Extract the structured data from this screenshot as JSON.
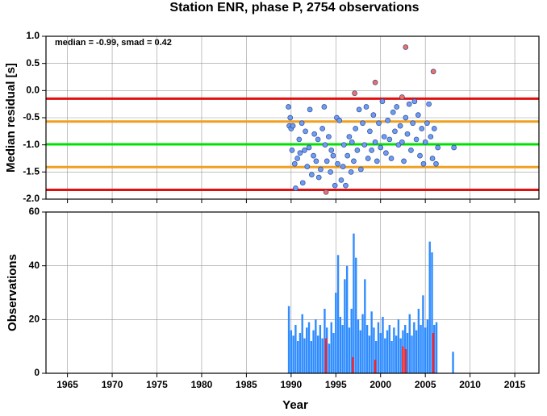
{
  "chart_data": [
    {
      "type": "scatter",
      "title": "Station ENR, phase P, 2754 observations",
      "y_label": "Median residual [s]",
      "annotation": "median = -0.99, smad = 0.42",
      "xlim": [
        1962.6,
        2017.7
      ],
      "xticks": [
        1965,
        1970,
        1975,
        1980,
        1985,
        1990,
        1995,
        2000,
        2005,
        2010,
        2015
      ],
      "ylim": [
        -2,
        1
      ],
      "yticks": [
        {
          "value": 1,
          "label": "1.0"
        },
        0.5,
        {
          "value": 0,
          "label": "0.0"
        },
        -0.5,
        {
          "value": -1,
          "label": "-1.0"
        },
        -1.5,
        {
          "value": -2,
          "label": "-2.0"
        }
      ],
      "grid": true,
      "hlines": [
        {
          "value": -0.99,
          "color": "#00e000"
        },
        {
          "value": -0.57,
          "color": "#f0a020"
        },
        {
          "value": -1.41,
          "color": "#f0a020"
        },
        {
          "value": -0.15,
          "color": "#e01010"
        },
        {
          "value": -1.83,
          "color": "#e01010"
        }
      ],
      "series": [
        {
          "color": "#6f9cf0",
          "x": [
            1989.7,
            1989.8,
            1989.9,
            1990.0,
            1990.1,
            1990.2,
            1990.4,
            1990.5,
            1990.7,
            1990.9,
            1991.0,
            1991.2,
            1991.3,
            1991.5,
            1991.6,
            1991.8,
            1992.0,
            1992.1,
            1992.3,
            1992.5,
            1992.6,
            1992.8,
            1993.0,
            1993.1,
            1993.3,
            1993.5,
            1993.7,
            1993.8,
            1994.0,
            1994.2,
            1994.4,
            1994.5,
            1994.7,
            1994.9,
            1995.1,
            1995.2,
            1995.4,
            1995.6,
            1995.8,
            1995.9,
            1996.1,
            1996.3,
            1996.5,
            1996.7,
            1996.8,
            1997.0,
            1997.2,
            1997.4,
            1997.6,
            1997.8,
            1998.0,
            1998.2,
            1998.4,
            1998.6,
            1998.8,
            1999.0,
            1999.2,
            1999.4,
            1999.6,
            1999.8,
            2000.0,
            2000.2,
            2000.4,
            2000.6,
            2000.8,
            2001.0,
            2001.2,
            2001.4,
            2001.6,
            2001.8,
            2002.0,
            2002.2,
            2002.4,
            2002.6,
            2002.8,
            2003.0,
            2003.2,
            2003.4,
            2003.6,
            2003.8,
            2004.0,
            2004.2,
            2004.4,
            2004.6,
            2004.8,
            2005.0,
            2005.2,
            2005.4,
            2005.6,
            2005.8,
            2006.0,
            2006.2,
            2006.4,
            2008.2
          ],
          "values": [
            -0.3,
            -0.65,
            -0.5,
            -0.7,
            -1.1,
            -0.65,
            -1.35,
            -1.8,
            -1.25,
            -0.9,
            -1.15,
            -0.6,
            -1.7,
            -1.1,
            -0.75,
            -1.4,
            -1.05,
            -0.35,
            -1.55,
            -1.2,
            -0.8,
            -1.3,
            -0.9,
            -1.6,
            -1.45,
            -0.7,
            -0.3,
            -1.0,
            -1.3,
            -0.85,
            -1.5,
            -1.1,
            -1.2,
            -1.75,
            -0.5,
            -1.35,
            -0.55,
            -1.65,
            -1.4,
            -1.0,
            -1.75,
            -1.2,
            -0.85,
            -1.5,
            -0.95,
            -1.3,
            -0.7,
            -1.1,
            -0.35,
            -1.45,
            -0.6,
            -1.0,
            -0.3,
            -1.25,
            -0.75,
            -1.1,
            -0.45,
            -0.95,
            -1.3,
            -0.6,
            -1.05,
            -0.2,
            -0.85,
            -1.15,
            -0.55,
            -0.9,
            -1.25,
            -0.4,
            -0.75,
            -0.3,
            -1.0,
            -0.65,
            -0.95,
            -1.3,
            -0.5,
            -0.8,
            -0.25,
            -1.1,
            -0.6,
            -0.2,
            -0.9,
            -0.45,
            -1.2,
            -0.7,
            -1.35,
            -0.95,
            -0.6,
            -0.25,
            -0.85,
            -1.25,
            -0.7,
            -1.35,
            -1.05,
            -1.05
          ]
        },
        {
          "color": "#f07060",
          "x": [
            1993.9,
            1997.1,
            1999.4,
            2002.4,
            2002.8,
            2005.9
          ],
          "values": [
            -1.87,
            -0.05,
            0.15,
            -0.12,
            0.8,
            0.35
          ]
        }
      ]
    },
    {
      "type": "bar",
      "y_label": "Observations",
      "x_label": "Year",
      "xlim": [
        1962.6,
        2017.7
      ],
      "xticks": [
        1965,
        1970,
        1975,
        1980,
        1985,
        1990,
        1995,
        2000,
        2005,
        2010,
        2015
      ],
      "ylim": [
        0,
        60
      ],
      "yticks": [
        0,
        20,
        40,
        60
      ],
      "grid": true,
      "series": [
        {
          "color": "#2f8cff",
          "x": [
            1989.75,
            1990.0,
            1990.25,
            1990.5,
            1990.75,
            1991.0,
            1991.25,
            1991.5,
            1991.75,
            1992.0,
            1992.25,
            1992.5,
            1992.75,
            1993.0,
            1993.25,
            1993.5,
            1993.75,
            1994.0,
            1994.25,
            1994.5,
            1994.75,
            1995.0,
            1995.25,
            1995.5,
            1995.75,
            1996.0,
            1996.25,
            1996.5,
            1996.75,
            1997.0,
            1997.25,
            1997.5,
            1997.75,
            1998.0,
            1998.25,
            1998.5,
            1998.75,
            1999.0,
            1999.25,
            1999.5,
            1999.75,
            2000.0,
            2000.25,
            2000.5,
            2000.75,
            2001.0,
            2001.25,
            2001.5,
            2001.75,
            2002.0,
            2002.25,
            2002.5,
            2002.75,
            2003.0,
            2003.25,
            2003.5,
            2003.75,
            2004.0,
            2004.25,
            2004.5,
            2004.75,
            2005.0,
            2005.25,
            2005.5,
            2005.75,
            2006.0,
            2006.25,
            2008.1
          ],
          "values": [
            25,
            16,
            14,
            18,
            12,
            15,
            22,
            13,
            17,
            19,
            12,
            16,
            20,
            14,
            18,
            13,
            24,
            17,
            11,
            19,
            15,
            30,
            44,
            21,
            18,
            35,
            40,
            17,
            24,
            52,
            43,
            20,
            16,
            22,
            35,
            18,
            14,
            23,
            17,
            12,
            19,
            15,
            21,
            13,
            16,
            18,
            12,
            17,
            14,
            20,
            13,
            16,
            18,
            15,
            22,
            14,
            19,
            16,
            24,
            18,
            29,
            17,
            20,
            49,
            45,
            18,
            19,
            8
          ]
        },
        {
          "color": "#ff2020",
          "x": [
            1993.9,
            1996.9,
            1999.4,
            2002.5,
            2002.8,
            2005.9
          ],
          "values": [
            13,
            6,
            5,
            10,
            9,
            15
          ]
        }
      ]
    }
  ]
}
